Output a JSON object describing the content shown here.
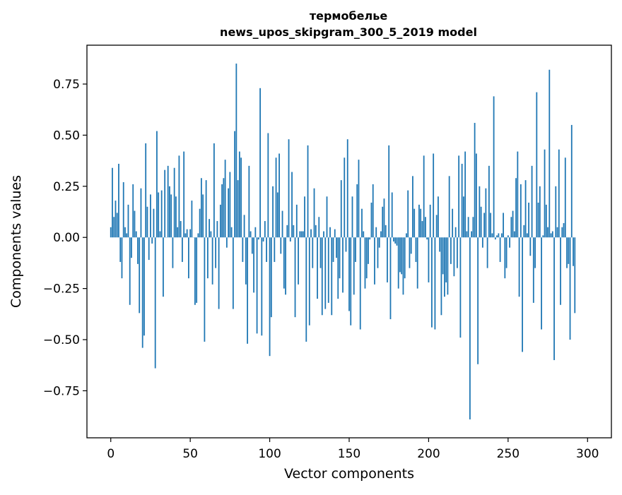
{
  "chart_data": {
    "type": "bar",
    "title": "термобелье",
    "subtitle": "news_upos_skipgram_300_5_2019 model",
    "xlabel": "Vector components",
    "ylabel": "Components values",
    "xlim": [
      -15,
      315
    ],
    "ylim": [
      -0.98,
      0.94
    ],
    "xticks": [
      0,
      50,
      100,
      150,
      200,
      250,
      300
    ],
    "xtick_labels": [
      "0",
      "50",
      "100",
      "150",
      "200",
      "250",
      "300"
    ],
    "yticks": [
      0.75,
      0.5,
      0.25,
      0.0,
      -0.25,
      -0.5,
      -0.75
    ],
    "ytick_labels": [
      "0.75",
      "0.50",
      "0.25",
      "0.00",
      "−0.25",
      "−0.50",
      "−0.75"
    ],
    "bar_color": "#1f77b4",
    "grid": false,
    "values": [
      0.05,
      0.34,
      0.1,
      0.18,
      0.12,
      0.36,
      -0.12,
      -0.2,
      0.27,
      0.05,
      0.02,
      0.16,
      -0.33,
      -0.1,
      0.26,
      0.13,
      0.03,
      -0.13,
      -0.37,
      0.24,
      -0.54,
      -0.48,
      0.46,
      0.15,
      -0.11,
      0.21,
      -0.03,
      0.14,
      -0.64,
      0.52,
      0.22,
      0.03,
      0.23,
      -0.29,
      0.33,
      0.0,
      0.35,
      0.25,
      0.21,
      -0.15,
      0.34,
      0.2,
      0.05,
      0.4,
      0.08,
      -0.12,
      0.42,
      0.02,
      0.04,
      -0.2,
      0.04,
      0.18,
      0.0,
      -0.33,
      -0.32,
      0.02,
      0.14,
      0.29,
      0.21,
      -0.51,
      0.28,
      -0.2,
      0.09,
      0.03,
      -0.23,
      0.46,
      -0.15,
      0.08,
      -0.35,
      0.16,
      0.26,
      0.29,
      0.38,
      -0.05,
      0.24,
      0.32,
      0.05,
      -0.35,
      0.52,
      0.85,
      0.28,
      0.42,
      0.39,
      -0.12,
      0.11,
      -0.23,
      -0.52,
      0.35,
      0.03,
      -0.08,
      -0.27,
      0.05,
      -0.47,
      -0.01,
      0.73,
      -0.48,
      -0.02,
      0.08,
      -0.12,
      0.51,
      -0.58,
      -0.39,
      0.25,
      -0.12,
      0.39,
      0.22,
      0.41,
      -0.08,
      0.13,
      -0.25,
      -0.28,
      0.06,
      0.48,
      -0.02,
      0.32,
      0.06,
      -0.39,
      0.16,
      -0.23,
      0.03,
      0.03,
      0.03,
      0.2,
      -0.51,
      0.45,
      -0.43,
      0.04,
      -0.15,
      0.24,
      0.06,
      -0.3,
      0.1,
      -0.15,
      -0.38,
      0.03,
      -0.35,
      0.2,
      -0.32,
      0.05,
      -0.38,
      -0.12,
      0.04,
      -0.1,
      -0.3,
      -0.2,
      0.28,
      -0.27,
      0.39,
      -0.07,
      0.48,
      -0.36,
      -0.43,
      0.2,
      -0.28,
      -0.12,
      0.26,
      0.38,
      -0.45,
      0.14,
      0.03,
      -0.25,
      -0.2,
      -0.13,
      -0.01,
      0.17,
      0.26,
      -0.23,
      0.05,
      -0.15,
      -0.05,
      0.03,
      0.15,
      0.19,
      0.06,
      -0.22,
      0.45,
      -0.4,
      0.22,
      -0.02,
      -0.03,
      -0.04,
      -0.25,
      -0.17,
      -0.18,
      -0.28,
      -0.2,
      0.02,
      0.23,
      -0.15,
      -0.08,
      0.3,
      0.14,
      -0.12,
      -0.25,
      0.16,
      0.14,
      0.08,
      0.4,
      0.1,
      -0.01,
      -0.22,
      0.16,
      -0.44,
      0.41,
      -0.45,
      0.11,
      0.2,
      -0.07,
      -0.38,
      -0.18,
      -0.29,
      -0.22,
      -0.28,
      0.3,
      -0.13,
      0.14,
      -0.19,
      0.05,
      -0.15,
      0.4,
      -0.49,
      0.36,
      0.2,
      0.42,
      0.03,
      0.1,
      -0.89,
      0.03,
      0.1,
      0.56,
      0.41,
      -0.62,
      0.25,
      0.15,
      -0.05,
      0.12,
      0.24,
      -0.15,
      0.35,
      0.12,
      0.02,
      0.69,
      -0.01,
      0.01,
      0.02,
      -0.12,
      0.02,
      0.12,
      -0.2,
      -0.15,
      0.01,
      -0.05,
      0.1,
      0.13,
      0.03,
      0.29,
      0.42,
      -0.29,
      0.26,
      -0.56,
      0.06,
      0.28,
      0.02,
      0.17,
      -0.09,
      0.35,
      -0.32,
      -0.15,
      0.71,
      0.17,
      0.25,
      -0.45,
      0.01,
      0.43,
      0.16,
      0.05,
      0.82,
      0.02,
      0.03,
      -0.6,
      0.25,
      0.05,
      0.43,
      -0.33,
      0.05,
      0.07,
      0.39,
      -0.15,
      -0.13,
      -0.5,
      0.55,
      -0.14,
      -0.37
    ]
  }
}
